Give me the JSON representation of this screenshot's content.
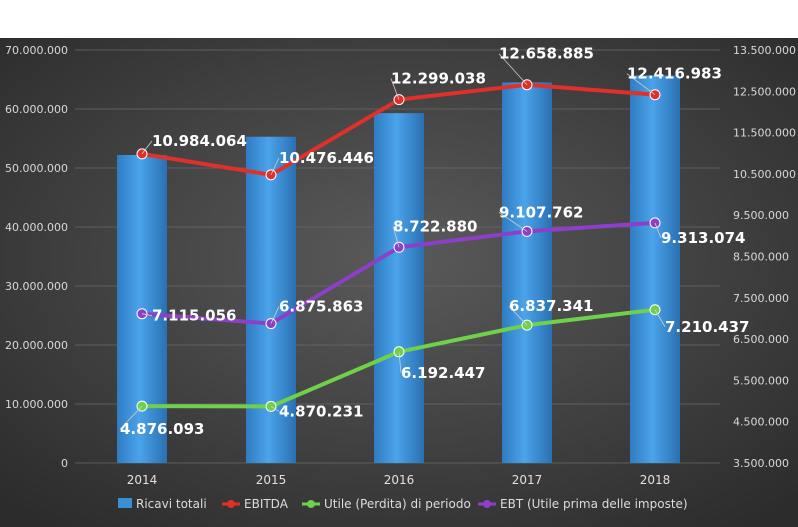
{
  "chart_data": {
    "type": "bar",
    "title": "",
    "categories": [
      "2014",
      "2015",
      "2016",
      "2017",
      "2018"
    ],
    "y_left": {
      "ticks": [
        "0",
        "10.000.000",
        "20.000.000",
        "30.000.000",
        "40.000.000",
        "50.000.000",
        "60.000.000",
        "70.000.000"
      ],
      "ylim": [
        0,
        70000000
      ]
    },
    "y_right": {
      "ticks": [
        "3.500.000",
        "4.500.000",
        "5.500.000",
        "6.500.000",
        "7.500.000",
        "8.500.000",
        "9.500.000",
        "10.500.000",
        "11.500.000",
        "12.500.000",
        "13.500.000"
      ],
      "ylim": [
        3500000,
        13500000
      ]
    },
    "bar_series": {
      "name": "Ricavi totali",
      "axis": "left",
      "values": [
        52200000,
        55300000,
        59300000,
        64500000,
        65700000
      ],
      "color": "#3a8fd6"
    },
    "line_series": [
      {
        "name": "EBITDA",
        "axis": "right",
        "values": [
          10984064,
          10476446,
          12299038,
          12658885,
          12416983
        ],
        "labels": [
          "10.984.064",
          "10.476.446",
          "12.299.038",
          "12.658.885",
          "12.416.983"
        ],
        "color": "#e0302a"
      },
      {
        "name": "Utile (Perdita) di periodo",
        "axis": "right",
        "values": [
          4876093,
          4870231,
          6192447,
          6837341,
          7210437
        ],
        "labels": [
          "4.876.093",
          "4.870.231",
          "6.192.447",
          "6.837.341",
          "7.210.437"
        ],
        "color": "#6fd14a"
      },
      {
        "name": "EBT (Utile prima delle imposte)",
        "axis": "right",
        "values": [
          7115056,
          6875863,
          8722880,
          9107762,
          9313074
        ],
        "labels": [
          "7.115.056",
          "6.875.863",
          "8.722.880",
          "9.107.762",
          "9.313.074"
        ],
        "color": "#8e3fc9"
      }
    ],
    "legend": {
      "position": "bottom",
      "entries": [
        "Ricavi totali",
        "EBITDA",
        "Utile (Perdita) di periodo",
        "EBT (Utile prima delle imposte)"
      ]
    }
  }
}
